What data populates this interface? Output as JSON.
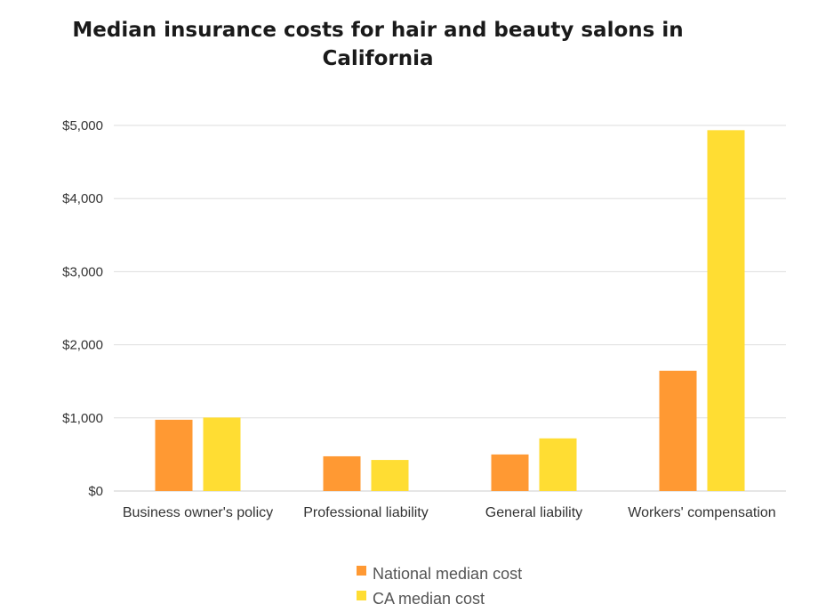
{
  "chart_data": {
    "type": "bar",
    "title": "Median insurance costs for hair and beauty salons in California",
    "categories": [
      "Business owner's policy",
      "Professional liability",
      "General liability",
      "Workers' compensation"
    ],
    "series": [
      {
        "name": "National median cost",
        "color": "#FF9933",
        "values": [
          975,
          475,
          500,
          1645
        ]
      },
      {
        "name": "CA median cost",
        "color": "#FFDD33",
        "values": [
          1005,
          425,
          720,
          4935
        ]
      }
    ],
    "ylim": [
      0,
      5000
    ],
    "yticks": [
      0,
      1000,
      2000,
      3000,
      4000,
      5000
    ],
    "ytick_labels": [
      "$0",
      "$1,000",
      "$2,000",
      "$3,000",
      "$4,000",
      "$5,000"
    ],
    "xlabel": "",
    "ylabel": "",
    "grid": true,
    "legend_position": "bottom"
  }
}
